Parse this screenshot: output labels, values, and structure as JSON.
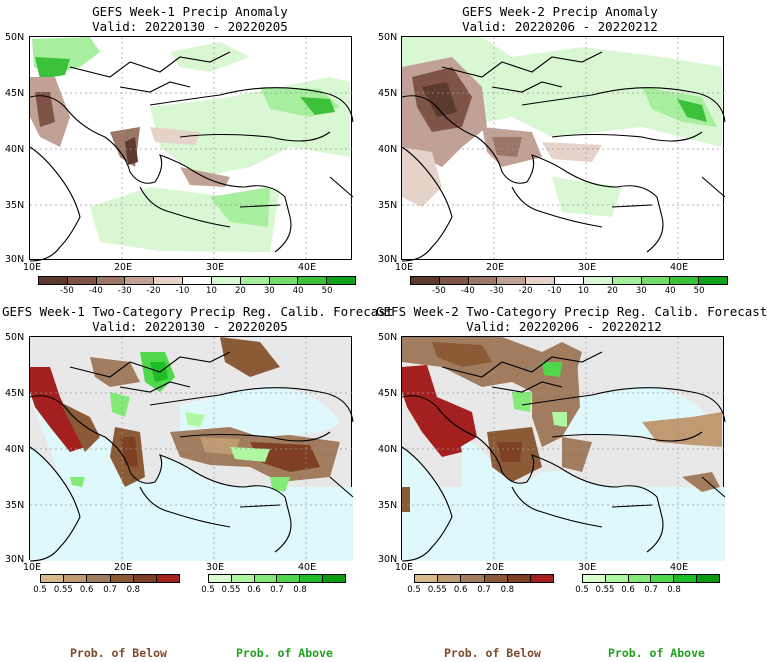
{
  "panels": [
    {
      "title": "GEFS Week-1 Precip Anomaly",
      "valid": "Valid: 20220130 - 20220205"
    },
    {
      "title": "GEFS Week-2 Precip Anomaly",
      "valid": "Valid: 20220206 - 20220212"
    },
    {
      "title": "GEFS Week-1 Two-Category Precip Reg. Calib. Forecast",
      "valid": "Valid: 20220130 - 20220205"
    },
    {
      "title": "GEFS Week-2 Two-Category Precip Reg. Calib. Forecast",
      "valid": "Valid: 20220206 - 20220212"
    }
  ],
  "axes": {
    "lat_labels": [
      "50N",
      "45N",
      "40N",
      "35N",
      "30N"
    ],
    "lon_labels": [
      "10E",
      "20E",
      "30E",
      "40E"
    ]
  },
  "anomaly_colorbar": {
    "labels": [
      "-50",
      "-40",
      "-30",
      "-20",
      "-10",
      "10",
      "20",
      "30",
      "40",
      "50"
    ],
    "colors": [
      "#5c3a2e",
      "#7d5446",
      "#9b7566",
      "#c1a195",
      "#e5d2c8",
      "#ffffff",
      "#d9f7d3",
      "#a8ee9f",
      "#74dc6a",
      "#3cc23a",
      "#12a11a"
    ]
  },
  "prob_colorbar": {
    "below_labels": [
      "0.5",
      "0.55",
      "0.6",
      "0.7",
      "0.8"
    ],
    "above_labels": [
      "0.5",
      "0.55",
      "0.6",
      "0.7",
      "0.8"
    ],
    "below_colors": [
      "#d9b98e",
      "#bf9a72",
      "#a27c5e",
      "#8b5a36",
      "#7e3f24",
      "#a3201e"
    ],
    "above_colors": [
      "#d9ffcf",
      "#b0f7a4",
      "#84ea77",
      "#4fd84c",
      "#1fbd25",
      "#0a9b12"
    ],
    "below_caption": "Prob. of Below",
    "above_caption": "Prob. of Above"
  },
  "colors": {
    "below_caption": "#7e4a2e",
    "above_caption": "#22a020",
    "sea": "#dff8fb",
    "land_none": "#e8e8e8"
  }
}
